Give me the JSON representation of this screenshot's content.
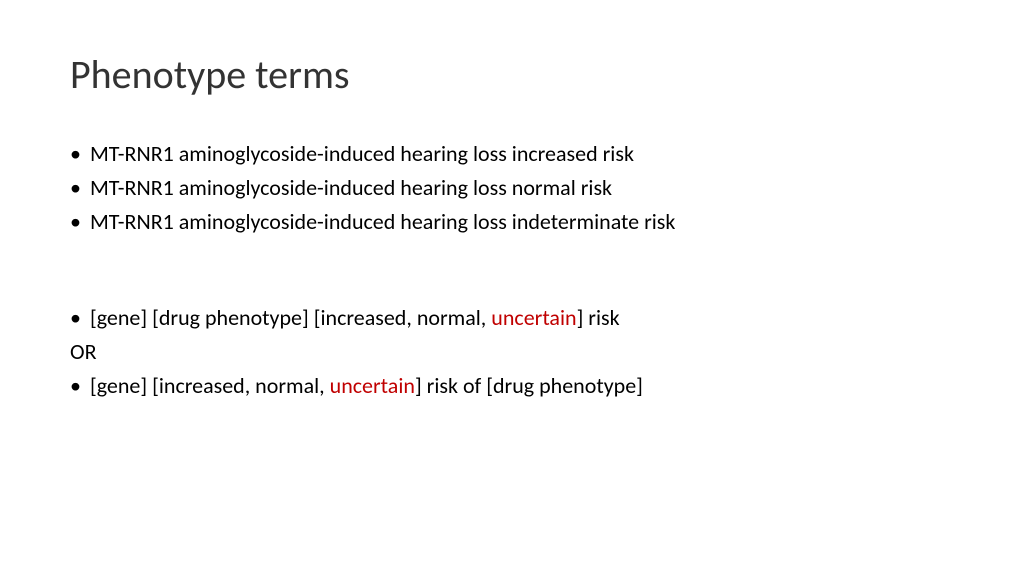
{
  "title": "Phenotype terms",
  "bullets_top": [
    "MT-RNR1 aminoglycoside-induced hearing loss increased risk",
    "MT-RNR1 aminoglycoside-induced hearing loss normal risk",
    "MT-RNR1 aminoglycoside-induced hearing loss indeterminate risk"
  ],
  "template_line_1": {
    "prefix": "[gene] [drug phenotype] [increased, normal, ",
    "highlight": "uncertain",
    "suffix": "] risk"
  },
  "or_label": "OR",
  "template_line_2": {
    "prefix": "[gene] [increased, normal, ",
    "highlight": "uncertain",
    "suffix": "] risk of [drug phenotype]"
  },
  "colors": {
    "background": "#ffffff",
    "text": "#000000",
    "title": "#333333",
    "highlight": "#c00000"
  },
  "typography": {
    "title_fontsize": 40,
    "body_fontsize": 22,
    "font_family": "Calibri"
  }
}
